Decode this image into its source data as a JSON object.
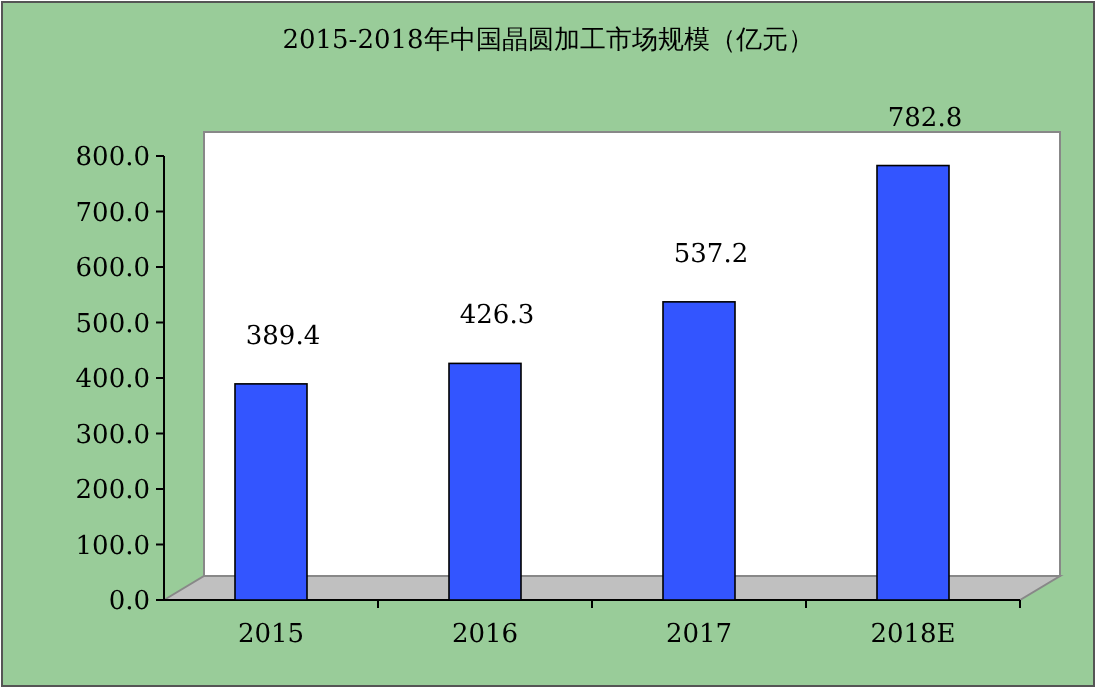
{
  "chart_data": {
    "type": "bar",
    "title": "2015-2018年中国晶圆加工市场规模（亿元）",
    "categories": [
      "2015",
      "2016",
      "2017",
      "2018E"
    ],
    "values": [
      389.4,
      426.3,
      537.2,
      782.8
    ],
    "color": "#3355ff",
    "ylim": [
      0,
      800
    ],
    "yticks": [
      {
        "value": 0,
        "label": "0.0"
      },
      {
        "value": 100,
        "label": "100.0"
      },
      {
        "value": 200,
        "label": "200.0"
      },
      {
        "value": 300,
        "label": "300.0"
      },
      {
        "value": 400,
        "label": "400.0"
      },
      {
        "value": 500,
        "label": "500.0"
      },
      {
        "value": 600,
        "label": "600.0"
      },
      {
        "value": 700,
        "label": "700.0"
      },
      {
        "value": 800,
        "label": "800.0"
      }
    ],
    "data_labels": true
  }
}
